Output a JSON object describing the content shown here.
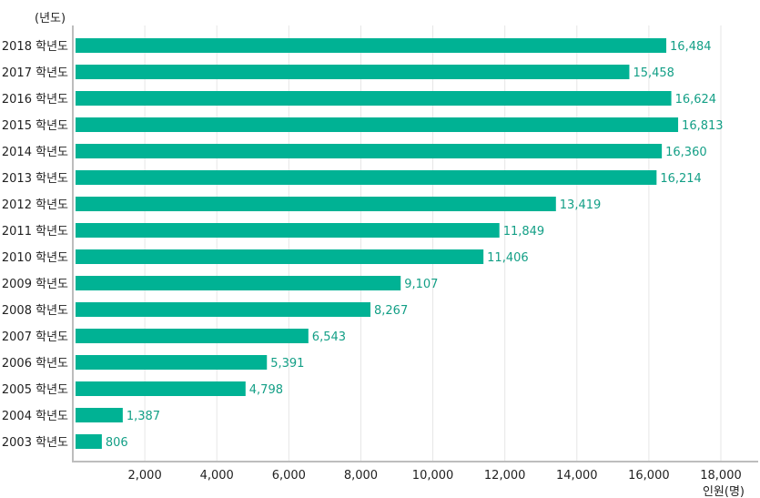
{
  "chart_data": {
    "type": "bar",
    "orientation": "horizontal",
    "y_unit_label": "(년도)",
    "x_unit_label": "인원(명)",
    "categories": [
      "2018 학년도",
      "2017 학년도",
      "2016 학년도",
      "2015 학년도",
      "2014 학년도",
      "2013 학년도",
      "2012 학년도",
      "2011 학년도",
      "2010 학년도",
      "2009 학년도",
      "2008 학년도",
      "2007 학년도",
      "2006 학년도",
      "2005 학년도",
      "2004 학년도",
      "2003 학년도"
    ],
    "values": [
      16484,
      15458,
      16624,
      16813,
      16360,
      16214,
      13419,
      11849,
      11406,
      9107,
      8267,
      6543,
      5391,
      4798,
      1387,
      806
    ],
    "value_labels": [
      "16,484",
      "15,458",
      "16,624",
      "16,813",
      "16,360",
      "16,214",
      "13,419",
      "11,849",
      "11,406",
      "9,107",
      "8,267",
      "6,543",
      "5,391",
      "4,798",
      "1,387",
      "806"
    ],
    "x_ticks": [
      2000,
      4000,
      6000,
      8000,
      10000,
      12000,
      14000,
      16000,
      18000
    ],
    "x_tick_labels": [
      "2,000",
      "4,000",
      "6,000",
      "8,000",
      "10,000",
      "12,000",
      "14,000",
      "16,000",
      "18,000"
    ],
    "xlim": [
      0,
      18000
    ],
    "grid": true,
    "bar_color": "#00b294",
    "label_color": "#139f86"
  }
}
